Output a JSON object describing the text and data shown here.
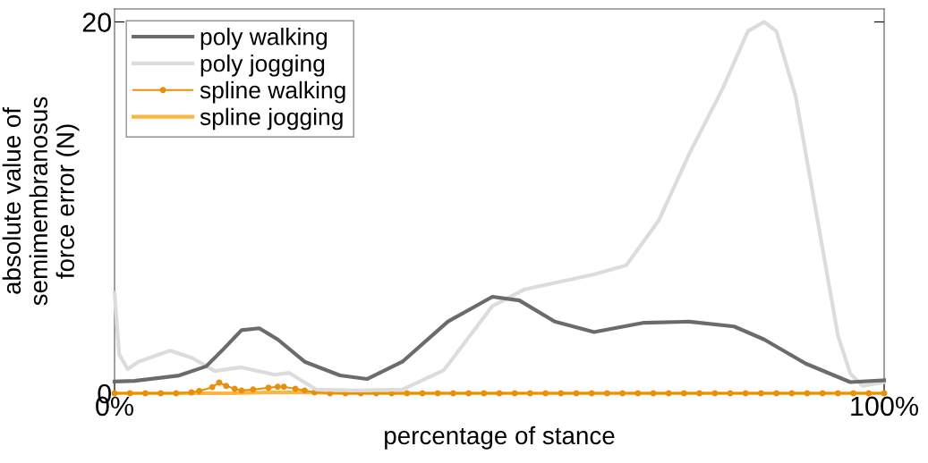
{
  "chart_data": {
    "type": "line",
    "xlabel": "percentage of stance",
    "ylabel": "absolute value of\nsemimembranosus\nforce error (N)",
    "xlim": [
      0,
      100
    ],
    "ylim": [
      0,
      20.7
    ],
    "xticks": [
      {
        "value": 0,
        "label": "0%"
      },
      {
        "value": 100,
        "label": "100%"
      }
    ],
    "yticks": [
      0,
      20
    ],
    "grid": false,
    "legend": "top left",
    "series": [
      {
        "name": "poly walking",
        "color": "#6b6b6b",
        "marker": "none",
        "x": [
          0,
          2.6,
          8.4,
          11.9,
          14.2,
          16.5,
          18.8,
          21.2,
          24.7,
          29.3,
          32.8,
          37.4,
          43.3,
          49.1,
          52.6,
          57.2,
          62.3,
          68.8,
          74.7,
          80.5,
          84.4,
          89.8,
          95.6,
          100
        ],
        "values": [
          0.63,
          0.67,
          0.96,
          1.45,
          2.4,
          3.4,
          3.5,
          2.9,
          1.7,
          0.96,
          0.77,
          1.7,
          3.86,
          5.2,
          5.0,
          3.86,
          3.3,
          3.8,
          3.86,
          3.6,
          2.9,
          1.6,
          0.6,
          0.7
        ]
      },
      {
        "name": "poly jogging",
        "color": "#dcdcdc",
        "marker": "none",
        "x": [
          0,
          0.6,
          1.7,
          3.1,
          7.2,
          10.1,
          13,
          16.5,
          20.8,
          22.7,
          26.2,
          31.6,
          37.4,
          42.8,
          49.1,
          53.3,
          62.3,
          66.5,
          70.7,
          74.8,
          79,
          82.3,
          84.4,
          86,
          88.5,
          91.4,
          94,
          95.6,
          97.2,
          100
        ],
        "values": [
          5.4,
          2.1,
          1.3,
          1.7,
          2.3,
          1.9,
          1.2,
          1.4,
          1.0,
          1.1,
          0.2,
          0.15,
          0.2,
          1.25,
          4.7,
          5.6,
          6.4,
          6.9,
          9.3,
          13.0,
          16.4,
          19.5,
          20.0,
          19.5,
          16.0,
          9.2,
          3.1,
          1.06,
          0.4,
          0.6
        ]
      },
      {
        "name": "spline walking",
        "color": "#e8900c",
        "marker": "circle",
        "x": [
          0,
          2,
          4,
          6,
          8,
          10,
          11,
          12.7,
          13.6,
          14.5,
          15.6,
          16.5,
          18,
          20,
          21.2,
          22,
          23.5,
          24.7,
          26,
          28,
          30,
          32,
          34,
          36,
          38,
          40,
          42,
          44,
          46,
          48,
          50,
          52,
          54,
          56,
          58,
          60,
          62,
          64,
          66,
          68,
          70,
          72,
          74,
          76,
          78,
          80,
          82,
          84,
          86,
          88,
          90,
          92,
          94,
          96,
          98,
          100
        ],
        "values": [
          0,
          0,
          0,
          0,
          0,
          0.05,
          0.12,
          0.33,
          0.58,
          0.4,
          0.24,
          0.15,
          0.2,
          0.3,
          0.35,
          0.35,
          0.24,
          0.15,
          0.05,
          0,
          0,
          0,
          0,
          0,
          0,
          0,
          0,
          0,
          0,
          0,
          0,
          0,
          0,
          0,
          0,
          0,
          0,
          0,
          0,
          0,
          0,
          0,
          0,
          0,
          0,
          0,
          0,
          0,
          0,
          0,
          0,
          0,
          0,
          0,
          0,
          0
        ]
      },
      {
        "name": "spline jogging",
        "color": "#ffb53d",
        "marker": "none",
        "x": [
          0,
          15,
          20,
          25,
          30,
          100
        ],
        "values": [
          0,
          0,
          0.05,
          0.05,
          0,
          0
        ]
      }
    ]
  }
}
